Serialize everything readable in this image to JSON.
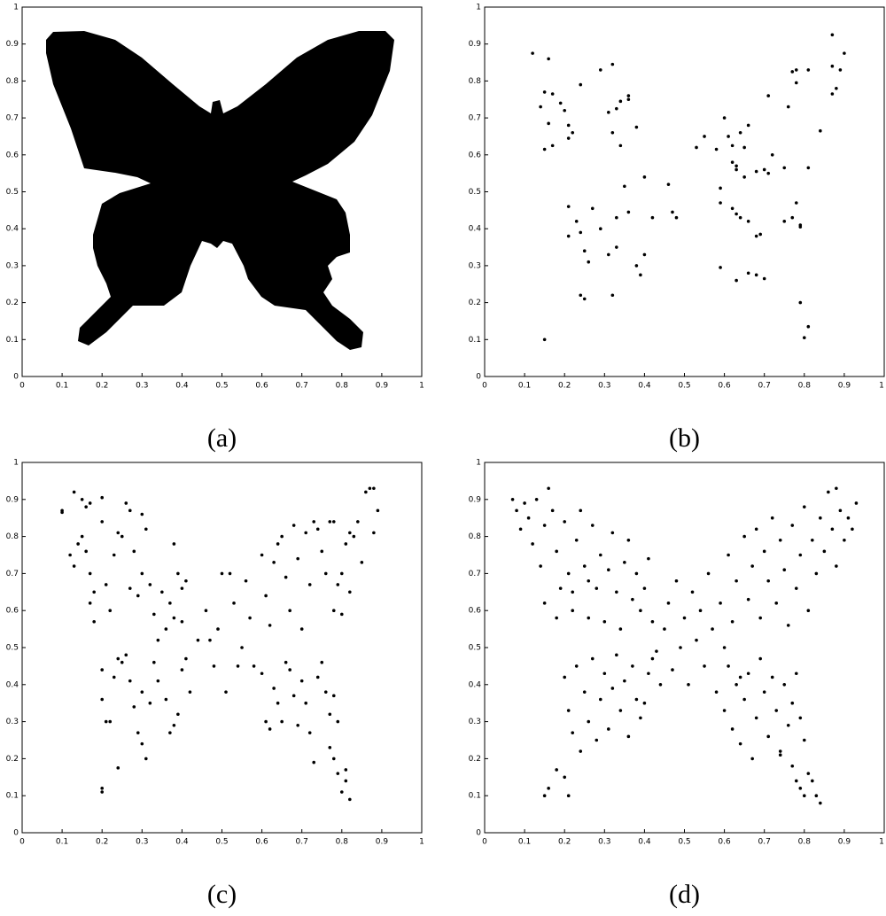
{
  "chart_data": [
    {
      "type": "image",
      "caption": "(a)",
      "xlim": [
        0,
        1
      ],
      "ylim": [
        0,
        1
      ],
      "xticks": [
        0,
        0.1,
        0.2,
        0.3,
        0.4,
        0.5,
        0.6,
        0.7,
        0.8,
        0.9,
        1
      ],
      "yticks": [
        0,
        0.1,
        0.2,
        0.3,
        0.4,
        0.5,
        0.6,
        0.7,
        0.8,
        0.9,
        1
      ]
    },
    {
      "type": "scatter",
      "caption": "(b)",
      "color": "#000000",
      "xlim": [
        0,
        1
      ],
      "ylim": [
        0,
        1
      ],
      "xticks": [
        0,
        0.1,
        0.2,
        0.3,
        0.4,
        0.5,
        0.6,
        0.7,
        0.8,
        0.9,
        1
      ],
      "yticks": [
        0,
        0.1,
        0.2,
        0.3,
        0.4,
        0.5,
        0.6,
        0.7,
        0.8,
        0.9,
        1
      ],
      "x": [
        0.12,
        0.16,
        0.14,
        0.15,
        0.17,
        0.16,
        0.15,
        0.17,
        0.19,
        0.2,
        0.21,
        0.21,
        0.22,
        0.24,
        0.29,
        0.32,
        0.31,
        0.33,
        0.34,
        0.32,
        0.34,
        0.36,
        0.36,
        0.38,
        0.35,
        0.4,
        0.21,
        0.21,
        0.23,
        0.24,
        0.25,
        0.26,
        0.27,
        0.29,
        0.31,
        0.33,
        0.33,
        0.36,
        0.38,
        0.39,
        0.4,
        0.42,
        0.24,
        0.25,
        0.32,
        0.15,
        0.46,
        0.47,
        0.48,
        0.53,
        0.55,
        0.58,
        0.6,
        0.61,
        0.62,
        0.62,
        0.63,
        0.64,
        0.65,
        0.66,
        0.65,
        0.63,
        0.68,
        0.7,
        0.71,
        0.72,
        0.75,
        0.71,
        0.77,
        0.78,
        0.78,
        0.76,
        0.81,
        0.87,
        0.87,
        0.89,
        0.9,
        0.87,
        0.88,
        0.84,
        0.81,
        0.59,
        0.59,
        0.62,
        0.63,
        0.64,
        0.66,
        0.68,
        0.69,
        0.75,
        0.77,
        0.78,
        0.79,
        0.79,
        0.59,
        0.63,
        0.66,
        0.68,
        0.7,
        0.79,
        0.8,
        0.81
      ],
      "values": [
        0.875,
        0.86,
        0.73,
        0.77,
        0.765,
        0.685,
        0.615,
        0.625,
        0.74,
        0.72,
        0.68,
        0.645,
        0.66,
        0.79,
        0.83,
        0.845,
        0.715,
        0.725,
        0.745,
        0.66,
        0.625,
        0.76,
        0.75,
        0.675,
        0.515,
        0.54,
        0.46,
        0.38,
        0.42,
        0.39,
        0.34,
        0.31,
        0.455,
        0.4,
        0.33,
        0.35,
        0.43,
        0.445,
        0.3,
        0.275,
        0.33,
        0.43,
        0.22,
        0.21,
        0.22,
        0.1,
        0.52,
        0.445,
        0.43,
        0.62,
        0.65,
        0.615,
        0.7,
        0.65,
        0.625,
        0.58,
        0.57,
        0.66,
        0.62,
        0.68,
        0.54,
        0.56,
        0.555,
        0.56,
        0.55,
        0.6,
        0.565,
        0.76,
        0.825,
        0.83,
        0.795,
        0.73,
        0.83,
        0.925,
        0.84,
        0.83,
        0.875,
        0.765,
        0.78,
        0.665,
        0.565,
        0.51,
        0.47,
        0.455,
        0.44,
        0.43,
        0.42,
        0.38,
        0.385,
        0.42,
        0.43,
        0.47,
        0.41,
        0.405,
        0.295,
        0.26,
        0.28,
        0.275,
        0.265,
        0.2,
        0.105,
        0.135
      ]
    },
    {
      "type": "scatter",
      "caption": "(c)",
      "color": "#000000",
      "xlim": [
        0,
        1
      ],
      "ylim": [
        0,
        1
      ],
      "xticks": [
        0,
        0.1,
        0.2,
        0.3,
        0.4,
        0.5,
        0.6,
        0.7,
        0.8,
        0.9,
        1
      ],
      "yticks": [
        0,
        0.1,
        0.2,
        0.3,
        0.4,
        0.5,
        0.6,
        0.7,
        0.8,
        0.9,
        1
      ],
      "x": [
        0.1,
        0.1,
        0.12,
        0.13,
        0.13,
        0.15,
        0.16,
        0.17,
        0.14,
        0.15,
        0.16,
        0.17,
        0.18,
        0.17,
        0.18,
        0.2,
        0.2,
        0.21,
        0.22,
        0.23,
        0.24,
        0.25,
        0.26,
        0.27,
        0.28,
        0.27,
        0.29,
        0.3,
        0.31,
        0.3,
        0.32,
        0.33,
        0.35,
        0.37,
        0.38,
        0.39,
        0.4,
        0.41,
        0.38,
        0.4,
        0.36,
        0.34,
        0.2,
        0.2,
        0.21,
        0.22,
        0.23,
        0.24,
        0.25,
        0.26,
        0.27,
        0.28,
        0.29,
        0.3,
        0.31,
        0.3,
        0.32,
        0.33,
        0.34,
        0.36,
        0.37,
        0.38,
        0.39,
        0.4,
        0.41,
        0.42,
        0.24,
        0.2,
        0.2,
        0.44,
        0.46,
        0.47,
        0.48,
        0.49,
        0.5,
        0.51,
        0.52,
        0.53,
        0.54,
        0.55,
        0.56,
        0.57,
        0.58,
        0.6,
        0.61,
        0.62,
        0.63,
        0.64,
        0.65,
        0.66,
        0.67,
        0.68,
        0.69,
        0.7,
        0.71,
        0.72,
        0.73,
        0.74,
        0.75,
        0.76,
        0.77,
        0.78,
        0.78,
        0.79,
        0.8,
        0.81,
        0.82,
        0.83,
        0.84,
        0.85,
        0.86,
        0.87,
        0.88,
        0.88,
        0.89,
        0.8,
        0.82,
        0.6,
        0.61,
        0.62,
        0.63,
        0.64,
        0.65,
        0.66,
        0.67,
        0.68,
        0.69,
        0.7,
        0.71,
        0.72,
        0.73,
        0.74,
        0.75,
        0.76,
        0.77,
        0.78,
        0.79,
        0.77,
        0.78,
        0.79,
        0.8,
        0.81,
        0.82,
        0.81
      ],
      "values": [
        0.87,
        0.865,
        0.75,
        0.72,
        0.92,
        0.9,
        0.88,
        0.89,
        0.78,
        0.8,
        0.76,
        0.7,
        0.65,
        0.62,
        0.57,
        0.905,
        0.84,
        0.67,
        0.6,
        0.75,
        0.81,
        0.8,
        0.89,
        0.87,
        0.76,
        0.66,
        0.64,
        0.86,
        0.82,
        0.7,
        0.67,
        0.59,
        0.65,
        0.62,
        0.78,
        0.7,
        0.66,
        0.68,
        0.58,
        0.57,
        0.55,
        0.52,
        0.44,
        0.36,
        0.3,
        0.3,
        0.42,
        0.47,
        0.46,
        0.48,
        0.41,
        0.34,
        0.27,
        0.24,
        0.2,
        0.38,
        0.35,
        0.46,
        0.41,
        0.36,
        0.27,
        0.29,
        0.32,
        0.44,
        0.47,
        0.38,
        0.175,
        0.12,
        0.11,
        0.52,
        0.6,
        0.52,
        0.45,
        0.55,
        0.7,
        0.38,
        0.7,
        0.62,
        0.45,
        0.5,
        0.68,
        0.58,
        0.45,
        0.75,
        0.64,
        0.56,
        0.73,
        0.78,
        0.8,
        0.69,
        0.6,
        0.83,
        0.74,
        0.55,
        0.81,
        0.67,
        0.84,
        0.82,
        0.76,
        0.7,
        0.84,
        0.84,
        0.6,
        0.67,
        0.59,
        0.78,
        0.81,
        0.8,
        0.84,
        0.73,
        0.92,
        0.93,
        0.93,
        0.81,
        0.87,
        0.7,
        0.65,
        0.43,
        0.3,
        0.28,
        0.39,
        0.35,
        0.3,
        0.46,
        0.44,
        0.37,
        0.29,
        0.41,
        0.35,
        0.27,
        0.19,
        0.42,
        0.46,
        0.38,
        0.32,
        0.37,
        0.3,
        0.23,
        0.2,
        0.16,
        0.11,
        0.14,
        0.09,
        0.17
      ]
    },
    {
      "type": "scatter",
      "caption": "(d)",
      "color": "#000000",
      "xlim": [
        0,
        1
      ],
      "ylim": [
        0,
        1
      ],
      "xticks": [
        0,
        0.1,
        0.2,
        0.3,
        0.4,
        0.5,
        0.6,
        0.7,
        0.8,
        0.9,
        1
      ],
      "yticks": [
        0,
        0.1,
        0.2,
        0.3,
        0.4,
        0.5,
        0.6,
        0.7,
        0.8,
        0.9,
        1
      ],
      "x": [
        0.07,
        0.08,
        0.09,
        0.1,
        0.11,
        0.12,
        0.13,
        0.14,
        0.15,
        0.16,
        0.17,
        0.18,
        0.19,
        0.2,
        0.21,
        0.22,
        0.23,
        0.24,
        0.25,
        0.26,
        0.27,
        0.28,
        0.29,
        0.3,
        0.31,
        0.32,
        0.33,
        0.34,
        0.35,
        0.36,
        0.37,
        0.38,
        0.39,
        0.4,
        0.41,
        0.42,
        0.15,
        0.18,
        0.22,
        0.26,
        0.2,
        0.21,
        0.22,
        0.23,
        0.24,
        0.25,
        0.26,
        0.27,
        0.28,
        0.29,
        0.3,
        0.31,
        0.32,
        0.33,
        0.34,
        0.35,
        0.36,
        0.37,
        0.38,
        0.39,
        0.4,
        0.41,
        0.42,
        0.43,
        0.44,
        0.2,
        0.18,
        0.16,
        0.15,
        0.21,
        0.45,
        0.46,
        0.47,
        0.48,
        0.49,
        0.5,
        0.51,
        0.52,
        0.53,
        0.54,
        0.55,
        0.56,
        0.57,
        0.58,
        0.59,
        0.6,
        0.61,
        0.62,
        0.63,
        0.64,
        0.65,
        0.66,
        0.67,
        0.68,
        0.69,
        0.7,
        0.71,
        0.72,
        0.73,
        0.74,
        0.75,
        0.76,
        0.77,
        0.78,
        0.79,
        0.8,
        0.81,
        0.82,
        0.83,
        0.84,
        0.85,
        0.86,
        0.87,
        0.88,
        0.89,
        0.9,
        0.91,
        0.92,
        0.93,
        0.88,
        0.6,
        0.61,
        0.62,
        0.63,
        0.64,
        0.65,
        0.66,
        0.67,
        0.68,
        0.69,
        0.7,
        0.71,
        0.72,
        0.73,
        0.74,
        0.75,
        0.76,
        0.77,
        0.78,
        0.79,
        0.8,
        0.78,
        0.79,
        0.8,
        0.81,
        0.82,
        0.83,
        0.84,
        0.77,
        0.74
      ],
      "values": [
        0.9,
        0.87,
        0.82,
        0.89,
        0.85,
        0.78,
        0.9,
        0.72,
        0.83,
        0.93,
        0.87,
        0.76,
        0.66,
        0.84,
        0.7,
        0.6,
        0.79,
        0.87,
        0.72,
        0.58,
        0.83,
        0.66,
        0.75,
        0.57,
        0.71,
        0.81,
        0.65,
        0.55,
        0.73,
        0.79,
        0.63,
        0.7,
        0.6,
        0.66,
        0.74,
        0.57,
        0.62,
        0.58,
        0.65,
        0.68,
        0.42,
        0.33,
        0.27,
        0.45,
        0.22,
        0.38,
        0.3,
        0.47,
        0.25,
        0.36,
        0.43,
        0.28,
        0.39,
        0.48,
        0.33,
        0.41,
        0.26,
        0.45,
        0.36,
        0.31,
        0.35,
        0.43,
        0.47,
        0.49,
        0.4,
        0.15,
        0.17,
        0.12,
        0.1,
        0.1,
        0.55,
        0.62,
        0.44,
        0.68,
        0.5,
        0.58,
        0.4,
        0.65,
        0.52,
        0.6,
        0.45,
        0.7,
        0.55,
        0.38,
        0.62,
        0.5,
        0.75,
        0.57,
        0.68,
        0.42,
        0.8,
        0.63,
        0.72,
        0.82,
        0.58,
        0.76,
        0.68,
        0.85,
        0.62,
        0.79,
        0.71,
        0.56,
        0.83,
        0.66,
        0.75,
        0.88,
        0.6,
        0.79,
        0.7,
        0.85,
        0.76,
        0.92,
        0.82,
        0.93,
        0.87,
        0.79,
        0.85,
        0.82,
        0.89,
        0.72,
        0.33,
        0.45,
        0.28,
        0.4,
        0.24,
        0.36,
        0.43,
        0.2,
        0.31,
        0.47,
        0.38,
        0.26,
        0.42,
        0.33,
        0.21,
        0.4,
        0.29,
        0.35,
        0.43,
        0.31,
        0.25,
        0.14,
        0.12,
        0.1,
        0.16,
        0.14,
        0.1,
        0.08,
        0.18,
        0.22
      ]
    }
  ]
}
